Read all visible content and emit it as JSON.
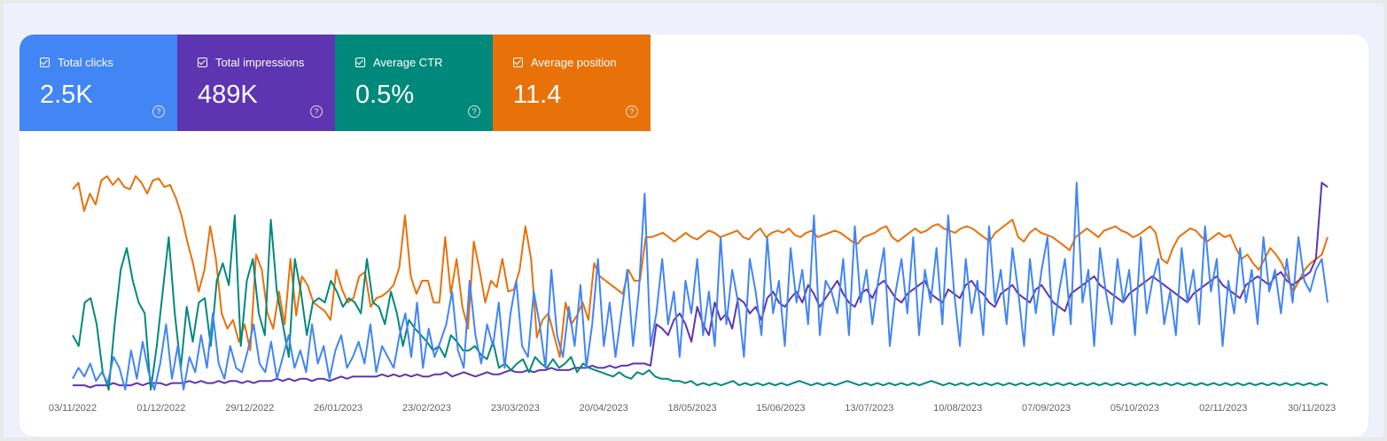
{
  "metrics": [
    {
      "label": "Total clicks",
      "value": "2.5K",
      "color": "#4285f4",
      "icon": "checkbox-checked-icon",
      "help_icon": "help-circle-icon"
    },
    {
      "label": "Total impressions",
      "value": "489K",
      "color": "#5e35b1",
      "icon": "checkbox-checked-icon",
      "help_icon": "help-circle-icon"
    },
    {
      "label": "Average CTR",
      "value": "0.5%",
      "color": "#00897b",
      "icon": "checkbox-checked-icon",
      "help_icon": "help-circle-icon"
    },
    {
      "label": "Average position",
      "value": "11.4",
      "color": "#e8710a",
      "icon": "checkbox-checked-icon",
      "help_icon": "help-circle-icon"
    }
  ],
  "chart_data": {
    "type": "line",
    "x_ticks": [
      "03/11/2022",
      "01/12/2022",
      "29/12/2022",
      "26/01/2023",
      "23/02/2023",
      "23/03/2023",
      "20/04/2023",
      "18/05/2023",
      "15/06/2023",
      "13/07/2023",
      "10/08/2023",
      "07/09/2023",
      "05/10/2023",
      "02/11/2023",
      "30/11/2023"
    ],
    "x_start": "03/11/2022",
    "x_end": "05/12/2023",
    "grid": false,
    "legend": "top-left metric tiles",
    "y_scale": "independent per series, no printed axis (relative 0-100)",
    "series": [
      {
        "name": "Average position",
        "color": "#e8710a",
        "values": [
          92,
          95,
          82,
          90,
          85,
          96,
          98,
          94,
          97,
          93,
          92,
          98,
          95,
          90,
          96,
          97,
          93,
          94,
          88,
          80,
          68,
          58,
          45,
          55,
          75,
          60,
          35,
          28,
          32,
          22,
          30,
          18,
          62,
          55,
          35,
          28,
          45,
          30,
          60,
          34,
          52,
          48,
          40,
          38,
          36,
          32,
          55,
          46,
          40,
          42,
          52,
          54,
          38,
          42,
          43,
          45,
          48,
          56,
          80,
          52,
          44,
          50,
          50,
          40,
          40,
          70,
          44,
          60,
          38,
          28,
          68,
          55,
          40,
          50,
          47,
          60,
          45,
          46,
          55,
          75,
          60,
          24,
          32,
          35,
          25,
          15,
          40,
          30,
          34,
          40,
          32,
          58,
          52,
          50,
          48,
          46,
          44,
          55,
          50,
          50,
          70,
          70,
          71,
          72,
          70,
          68,
          70,
          72,
          70,
          69,
          71,
          73,
          72,
          70,
          71,
          72,
          73,
          70,
          69,
          72,
          74,
          70,
          72,
          73,
          72,
          74,
          71,
          70,
          72,
          73,
          70,
          71,
          72,
          73,
          72,
          70,
          68,
          67,
          70,
          71,
          72,
          74,
          75,
          70,
          68,
          70,
          72,
          74,
          72,
          73,
          75,
          76,
          74,
          73,
          72,
          74,
          75,
          74,
          72,
          70,
          68,
          72,
          74,
          76,
          78,
          70,
          68,
          72,
          74,
          72,
          71,
          70,
          68,
          66,
          64,
          70,
          72,
          74,
          72,
          70,
          73,
          74,
          75,
          73,
          72,
          70,
          71,
          73,
          75,
          72,
          60,
          58,
          65,
          70,
          72,
          74,
          73,
          70,
          68,
          70,
          72,
          70,
          71,
          65,
          60,
          62,
          58,
          55,
          60,
          65,
          62,
          58,
          52,
          45,
          50,
          55,
          58,
          60,
          62,
          70
        ]
      },
      {
        "name": "Total impressions",
        "color": "#5e35b1",
        "values": [
          2,
          2,
          2,
          1,
          2,
          2,
          2,
          3,
          2,
          2,
          2,
          3,
          2,
          3,
          3,
          3,
          2,
          3,
          3,
          3,
          4,
          3,
          4,
          3,
          3,
          4,
          3,
          4,
          4,
          3,
          4,
          3,
          4,
          4,
          4,
          5,
          4,
          5,
          4,
          5,
          5,
          4,
          5,
          5,
          4,
          5,
          6,
          5,
          6,
          6,
          6,
          6,
          6,
          7,
          6,
          7,
          6,
          7,
          6,
          7,
          6,
          6,
          7,
          7,
          8,
          6,
          7,
          8,
          7,
          6,
          7,
          8,
          7,
          7,
          8,
          9,
          8,
          8,
          9,
          8,
          9,
          9,
          10,
          9,
          9,
          9,
          10,
          10,
          10,
          11,
          10,
          10,
          11,
          10,
          11,
          11,
          12,
          12,
          12,
          11,
          30,
          28,
          25,
          32,
          35,
          30,
          22,
          38,
          30,
          25,
          40,
          32,
          35,
          28,
          42,
          40,
          35,
          38,
          32,
          42,
          45,
          40,
          38,
          42,
          45,
          40,
          48,
          44,
          38,
          42,
          46,
          50,
          44,
          40,
          38,
          44,
          46,
          42,
          48,
          50,
          46,
          42,
          40,
          44,
          46,
          48,
          50,
          44,
          42,
          40,
          46,
          44,
          42,
          48,
          50,
          46,
          44,
          40,
          38,
          44,
          46,
          48,
          44,
          42,
          40,
          46,
          48,
          44,
          40,
          38,
          36,
          44,
          46,
          48,
          50,
          52,
          48,
          46,
          44,
          42,
          40,
          44,
          46,
          48,
          50,
          52,
          50,
          48,
          46,
          44,
          42,
          40,
          44,
          46,
          48,
          50,
          52,
          48,
          46,
          44,
          42,
          48,
          50,
          52,
          50,
          48,
          52,
          54,
          50,
          48,
          50,
          52,
          54,
          60,
          95,
          93
        ]
      },
      {
        "name": "Average CTR",
        "color": "#00897b",
        "values": [
          25,
          20,
          40,
          42,
          30,
          8,
          0,
          30,
          55,
          65,
          50,
          40,
          35,
          0,
          20,
          45,
          70,
          35,
          10,
          38,
          22,
          40,
          42,
          20,
          50,
          58,
          48,
          80,
          20,
          50,
          60,
          35,
          25,
          78,
          45,
          30,
          15,
          60,
          45,
          25,
          40,
          42,
          40,
          50,
          45,
          38,
          42,
          40,
          35,
          60,
          40,
          38,
          30,
          45,
          35,
          20,
          32,
          28,
          25,
          22,
          18,
          20,
          15,
          25,
          22,
          18,
          18,
          20,
          16,
          14,
          22,
          10,
          12,
          9,
          12,
          14,
          8,
          15,
          12,
          10,
          14,
          10,
          12,
          15,
          8,
          12,
          10,
          9,
          8,
          7,
          6,
          8,
          6,
          5,
          8,
          7,
          9,
          6,
          5,
          5,
          4,
          4,
          3,
          4,
          2,
          3,
          2,
          3,
          2,
          3,
          4,
          2,
          3,
          2,
          3,
          2,
          3,
          2,
          3,
          2,
          3,
          4,
          3,
          2,
          3,
          2,
          3,
          2,
          3,
          4,
          3,
          2,
          3,
          2,
          3,
          2,
          3,
          2,
          3,
          2,
          3,
          2,
          3,
          4,
          3,
          2,
          3,
          2,
          3,
          2,
          3,
          2,
          3,
          2,
          3,
          2,
          3,
          2,
          3,
          2,
          3,
          2,
          3,
          2,
          3,
          2,
          3,
          2,
          3,
          2,
          3,
          2,
          3,
          2,
          3,
          2,
          3,
          2,
          3,
          2,
          3,
          2,
          3,
          2,
          3,
          2,
          3,
          2,
          3,
          2,
          3,
          2,
          3,
          2,
          3,
          2,
          3,
          2,
          3,
          2,
          3,
          2,
          3,
          2,
          3,
          2,
          3,
          2,
          3,
          2
        ]
      },
      {
        "name": "Total clicks",
        "color": "#4285f4",
        "values": [
          5,
          10,
          6,
          12,
          4,
          8,
          3,
          15,
          10,
          0,
          18,
          5,
          22,
          8,
          0,
          12,
          30,
          5,
          20,
          0,
          15,
          8,
          25,
          10,
          35,
          12,
          5,
          20,
          10,
          8,
          18,
          30,
          12,
          8,
          22,
          5,
          15,
          25,
          10,
          18,
          8,
          30,
          12,
          20,
          5,
          18,
          25,
          10,
          15,
          22,
          12,
          30,
          8,
          20,
          15,
          10,
          25,
          35,
          15,
          40,
          10,
          28,
          15,
          22,
          30,
          45,
          18,
          10,
          50,
          25,
          12,
          30,
          20,
          40,
          10,
          35,
          50,
          20,
          15,
          45,
          30,
          10,
          55,
          25,
          15,
          38,
          20,
          48,
          10,
          30,
          60,
          20,
          40,
          15,
          35,
          55,
          20,
          45,
          90,
          20,
          35,
          60,
          30,
          45,
          15,
          50,
          35,
          60,
          25,
          45,
          20,
          70,
          30,
          55,
          40,
          15,
          60,
          45,
          25,
          70,
          35,
          50,
          20,
          65,
          40,
          55,
          30,
          80,
          25,
          50,
          45,
          35,
          60,
          25,
          75,
          40,
          55,
          30,
          50,
          65,
          20,
          45,
          60,
          35,
          70,
          25,
          55,
          40,
          65,
          30,
          80,
          45,
          20,
          60,
          35,
          50,
          25,
          75,
          40,
          55,
          30,
          65,
          45,
          20,
          60,
          35,
          55,
          70,
          25,
          45,
          60,
          30,
          95,
          40,
          55,
          20,
          65,
          45,
          30,
          60,
          40,
          55,
          25,
          70,
          35,
          50,
          60,
          30,
          45,
          25,
          65,
          40,
          55,
          30,
          75,
          45,
          60,
          20,
          50,
          35,
          65,
          40,
          55,
          30,
          70,
          45,
          55,
          35,
          60,
          40,
          70,
          50,
          45,
          55,
          60,
          40
        ]
      }
    ]
  }
}
